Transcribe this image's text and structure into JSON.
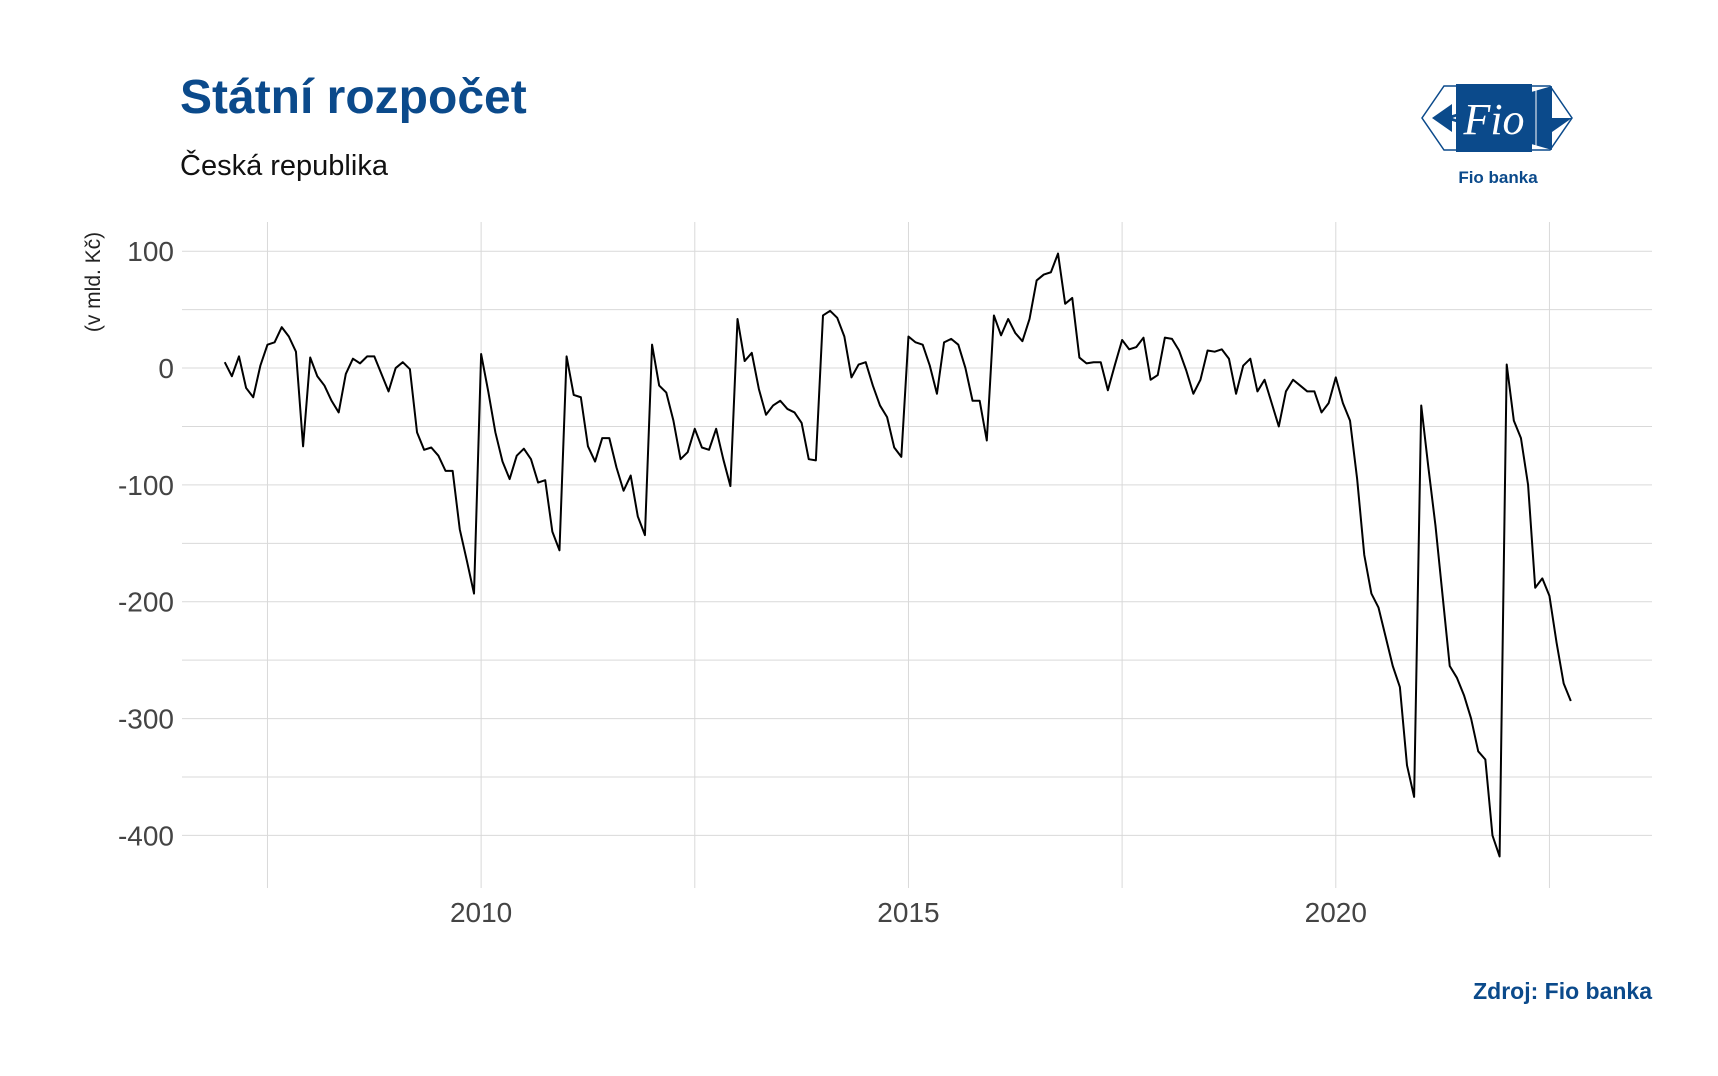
{
  "title": "Státní rozpočet",
  "subtitle": "Česká republika",
  "source": "Zdroj: Fio banka",
  "logo": {
    "mark_text": "Fio",
    "caption": "Fio banka",
    "brand_color": "#0b4a8b"
  },
  "chart_data": {
    "type": "line",
    "ylabel": "(v mld. Kč)",
    "xlabel": "",
    "xlim": [
      2006.5,
      2023.7
    ],
    "ylim": [
      -445,
      125
    ],
    "x_ticks": [
      2010,
      2015,
      2020
    ],
    "y_ticks": [
      100,
      0,
      -100,
      -200,
      -300,
      -400
    ],
    "grid": true,
    "line_color": "#000000",
    "series": [
      {
        "start_year": 2007,
        "step": "monthly",
        "values": [
          5,
          -7,
          10,
          -17,
          -25,
          2,
          20,
          22,
          35,
          27,
          14,
          -67,
          9,
          -7,
          -15,
          -28,
          -38,
          -5,
          8,
          4,
          10,
          10,
          -5,
          -20,
          0,
          5,
          -1,
          -55,
          -70,
          -68,
          -75,
          -88,
          -88,
          -138,
          -165,
          -193,
          12,
          -20,
          -55,
          -80,
          -95,
          -75,
          -69,
          -78,
          -98,
          -96,
          -140,
          -156,
          10,
          -23,
          -25,
          -67,
          -80,
          -60,
          -60,
          -85,
          -105,
          -92,
          -127,
          -143,
          20,
          -15,
          -21,
          -45,
          -78,
          -72,
          -52,
          -68,
          -70,
          -52,
          -78,
          -101,
          42,
          6,
          13,
          -18,
          -40,
          -32,
          -28,
          -35,
          -38,
          -47,
          -78,
          -79,
          45,
          49,
          43,
          27,
          -8,
          3,
          5,
          -15,
          -32,
          -42,
          -68,
          -76,
          27,
          22,
          20,
          2,
          -22,
          22,
          25,
          20,
          0,
          -28,
          -28,
          -62,
          45,
          28,
          42,
          30,
          23,
          42,
          75,
          80,
          82,
          98,
          55,
          60,
          9,
          4,
          5,
          5,
          -19,
          3,
          24,
          16,
          18,
          26,
          -10,
          -6,
          26,
          25,
          15,
          -2,
          -22,
          -10,
          15,
          14,
          16,
          8,
          -22,
          2,
          8,
          -20,
          -10,
          -30,
          -50,
          -20,
          -10,
          -15,
          -20,
          -20,
          -38,
          -30,
          -8,
          -30,
          -45,
          -95,
          -160,
          -193,
          -205,
          -230,
          -255,
          -273,
          -340,
          -367,
          -32,
          -85,
          -135,
          -195,
          -255,
          -265,
          -280,
          -300,
          -328,
          -335,
          -400,
          -418,
          3,
          -45,
          -60,
          -100,
          -188,
          -180,
          -195,
          -235,
          -270,
          -285
        ]
      }
    ]
  }
}
